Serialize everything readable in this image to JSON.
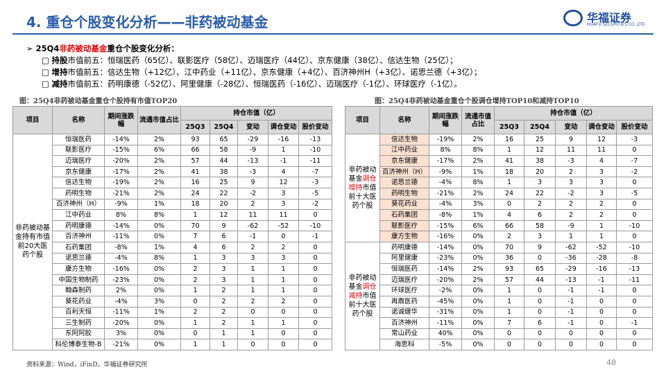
{
  "header": {
    "title": "4. 重仓个股变化分析——非药被动基金",
    "logo_cn": "华福证券",
    "logo_en": "HUAFU SECURITIES CO.,LTD."
  },
  "summary": {
    "lead": {
      "pre": "25Q4",
      "highlight": "非药被动基金",
      "post": "重仓个股变化分析："
    },
    "items": [
      {
        "label": "持股",
        "text": "市值前五：恒瑞医药（65亿）、联影医疗（58亿）、迈瑞医疗（44亿）、京东健康（38亿）、信达生物（25亿）；"
      },
      {
        "label": "增持",
        "text": "市值前五：信达生物（+12亿）、江中药业（+11亿）、京东健康（+4亿）、百济神州H（+3亿）、诺思兰德（+3亿）；"
      },
      {
        "label": "减持",
        "text": "市值前五：药明康德（-52亿）、阿里健康（-28亿）、恒瑞医药（-16亿）、迈瑞医疗（-1亿）、环球医疗（-1亿）。"
      }
    ]
  },
  "tables": {
    "left": {
      "caption": "图：25Q4非药被动基金重仓个股持有市值TOP20",
      "header": {
        "item": "项目",
        "name": "名称",
        "change": "期间涨跌幅",
        "float": "流通市值占比",
        "holding": "持仓市值（亿）",
        "sub": [
          "25Q3",
          "25Q4",
          "变动",
          "调仓变动",
          "股价变动"
        ]
      },
      "group_label": "非药被动基金持有市值前20大医药个股",
      "rows": [
        [
          "恒瑞医药",
          "-14%",
          "2%",
          "93",
          "65",
          "-29",
          "-16",
          "-13"
        ],
        [
          "联影医疗",
          "-15%",
          "6%",
          "66",
          "58",
          "-9",
          "1",
          "-10"
        ],
        [
          "迈瑞医疗",
          "-20%",
          "2%",
          "57",
          "44",
          "-13",
          "-1",
          "-11"
        ],
        [
          "京东健康",
          "-17%",
          "2%",
          "41",
          "38",
          "-3",
          "4",
          "-7"
        ],
        [
          "信达生物",
          "-19%",
          "2%",
          "16",
          "25",
          "9",
          "12",
          "-3"
        ],
        [
          "药明生物",
          "-21%",
          "2%",
          "24",
          "22",
          "-2",
          "3",
          "-5"
        ],
        [
          "百济神州（H）",
          "-9%",
          "1%",
          "18",
          "20",
          "2",
          "3",
          "-2"
        ],
        [
          "江中药业",
          "8%",
          "8%",
          "1",
          "12",
          "11",
          "11",
          "0"
        ],
        [
          "药明康德",
          "-14%",
          "0%",
          "70",
          "9",
          "-62",
          "-52",
          "-10"
        ],
        [
          "百济神州",
          "-11%",
          "0%",
          "7",
          "6",
          "-1",
          "0",
          "-1"
        ],
        [
          "石药集团",
          "-8%",
          "1%",
          "4",
          "6",
          "2",
          "2",
          "0"
        ],
        [
          "诺思兰德",
          "-4%",
          "8%",
          "1",
          "3",
          "3",
          "3",
          "0"
        ],
        [
          "康方生物",
          "-16%",
          "0%",
          "2",
          "3",
          "1",
          "1",
          "0"
        ],
        [
          "中国生物制药",
          "-23%",
          "0%",
          "2",
          "3",
          "1",
          "1",
          "0"
        ],
        [
          "翰森制药",
          "2%",
          "0%",
          "1",
          "2",
          "1",
          "1",
          "0"
        ],
        [
          "葵花药业",
          "-4%",
          "3%",
          "0",
          "2",
          "2",
          "2",
          "0"
        ],
        [
          "百利天恒",
          "-11%",
          "1%",
          "2",
          "2",
          "0",
          "0",
          "0"
        ],
        [
          "三生制药",
          "-20%",
          "0%",
          "1",
          "2",
          "1",
          "1",
          "0"
        ],
        [
          "东阿阿胶",
          "3%",
          "0%",
          "0",
          "1",
          "1",
          "0",
          "0"
        ],
        [
          "科伦博泰生物-B",
          "-21%",
          "0%",
          "1",
          "1",
          "0",
          "0",
          "0"
        ]
      ]
    },
    "right": {
      "caption": "图：25Q4非药被动基金重仓个股调仓增持TOP10和减持TOP10",
      "header": {
        "item": "项目",
        "name": "名称",
        "change": "期间涨跌幅",
        "float": "流通市值占比",
        "holding": "持仓市值（亿）",
        "sub": [
          "25Q3",
          "25Q4",
          "变动",
          "调仓变动",
          "股价变动"
        ]
      },
      "groups": [
        {
          "label": {
            "pre": "非药被动基金",
            "highlight": "调仓增持",
            "post": "市值前十大医药个股"
          },
          "rows": [
            [
              "信达生物",
              "-19%",
              "2%",
              "16",
              "25",
              "9",
              "12",
              "-3"
            ],
            [
              "江中药业",
              "8%",
              "8%",
              "1",
              "12",
              "11",
              "11",
              "0"
            ],
            [
              "京东健康",
              "-17%",
              "2%",
              "41",
              "38",
              "-3",
              "4",
              "-7"
            ],
            [
              "百济神州（H）",
              "-9%",
              "1%",
              "18",
              "20",
              "2",
              "3",
              "-2"
            ],
            [
              "诺思兰德",
              "-4%",
              "8%",
              "1",
              "3",
              "3",
              "3",
              "0"
            ],
            [
              "药明生物",
              "-21%",
              "2%",
              "24",
              "22",
              "-2",
              "3",
              "-5"
            ],
            [
              "葵花药业",
              "-4%",
              "3%",
              "0",
              "2",
              "2",
              "2",
              "0"
            ],
            [
              "石药集团",
              "-8%",
              "1%",
              "4",
              "6",
              "2",
              "2",
              "0"
            ],
            [
              "联影医疗",
              "-15%",
              "6%",
              "66",
              "58",
              "-9",
              "1",
              "-10"
            ],
            [
              "康方生物",
              "-16%",
              "0%",
              "2",
              "3",
              "1",
              "1",
              "0"
            ]
          ]
        },
        {
          "label": {
            "pre": "非药被动基金",
            "highlight": "调仓减持",
            "post": "市值前十大医药个股"
          },
          "rows": [
            [
              "药明康德",
              "-14%",
              "0%",
              "70",
              "9",
              "-62",
              "-52",
              "-10"
            ],
            [
              "阿里健康",
              "-23%",
              "0%",
              "36",
              "0",
              "-36",
              "-28",
              "-8"
            ],
            [
              "恒瑞医药",
              "-14%",
              "2%",
              "93",
              "65",
              "-29",
              "-16",
              "-13"
            ],
            [
              "迈瑞医疗",
              "-20%",
              "2%",
              "57",
              "44",
              "-13",
              "-1",
              "-11"
            ],
            [
              "环球医疗",
              "-2%",
              "0%",
              "1",
              "0",
              "-1",
              "-1",
              "0"
            ],
            [
              "再鼎医药",
              "-45%",
              "0%",
              "1",
              "0",
              "-1",
              "0",
              "0"
            ],
            [
              "诺诚健华",
              "-31%",
              "0%",
              "1",
              "0",
              "-1",
              "0",
              "0"
            ],
            [
              "百济神州",
              "-11%",
              "0%",
              "7",
              "6",
              "-1",
              "0",
              "-1"
            ],
            [
              "常山药业",
              "40%",
              "0%",
              "0",
              "0",
              "0",
              "0",
              "0"
            ],
            [
              "海思科",
              "-5%",
              "0%",
              "0",
              "0",
              "0",
              "0",
              "0"
            ]
          ]
        }
      ]
    }
  },
  "footer": {
    "source": "资料来源：Wind，iFinD，华福证券研究所",
    "page": "48"
  }
}
